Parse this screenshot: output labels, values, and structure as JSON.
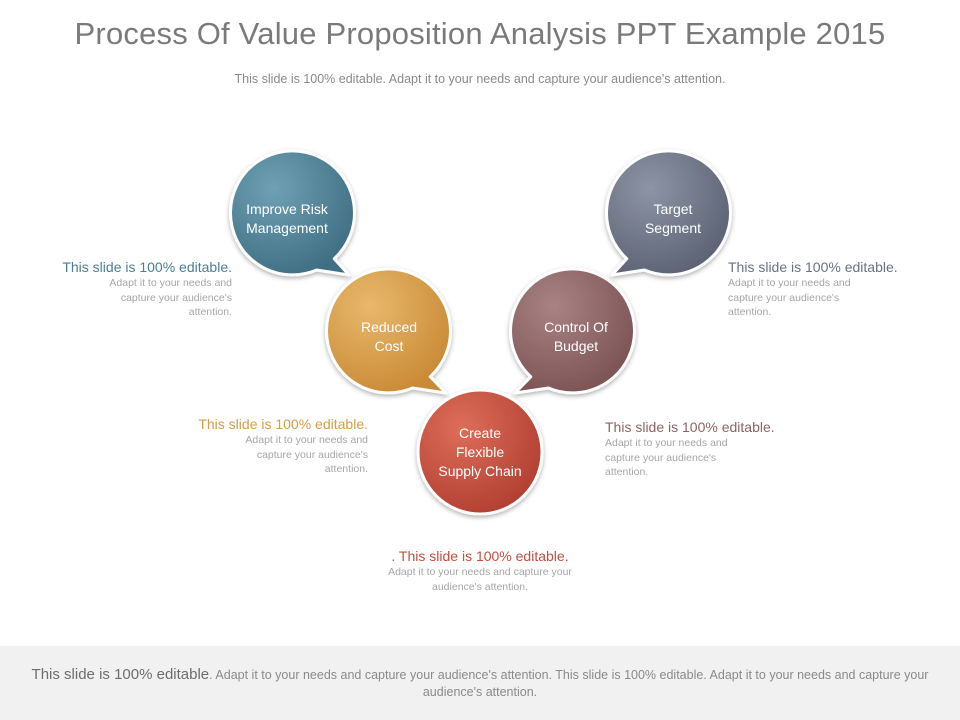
{
  "slide": {
    "title": "Process Of Value Proposition Analysis PPT Example 2015",
    "subtitle": "This slide is 100% editable. Adapt it to your needs and capture your audience's attention."
  },
  "nodes": [
    {
      "label": "Improve Risk Management",
      "color": "#4d7e93"
    },
    {
      "label": "Reduced Cost",
      "color": "#d69c4a"
    },
    {
      "label": "Create Flexible Supply Chain",
      "color": "#c3503f"
    },
    {
      "label": "Control Of Budget",
      "color": "#8d6465"
    },
    {
      "label": "Target Segment",
      "color": "#6b7283"
    }
  ],
  "callouts": [
    {
      "head": "This slide is 100% editable.",
      "body": "Adapt it to your needs and capture your audience's attention.",
      "color": "#4d7e93"
    },
    {
      "head": "This slide is 100% editable.",
      "body": "Adapt it to your needs and capture your audience's attention.",
      "color": "#d69c4a"
    },
    {
      "head": ". This slide is 100% editable.",
      "body": "Adapt it to your needs and capture your audience's attention.",
      "color": "#c3503f"
    },
    {
      "head": "This slide is 100% editable.",
      "body": "Adapt it to your needs and capture your audience's attention.",
      "color": "#8d6465"
    },
    {
      "head": "This slide is 100% editable.",
      "body": "Adapt it to your needs and capture your audience's attention.",
      "color": "#6b7283"
    }
  ],
  "footer": {
    "lead": "This slide is 100% editable",
    "rest": ". Adapt it to your needs and capture your audience's attention. This slide is 100% editable. Adapt it to your needs and capture your audience's attention."
  }
}
